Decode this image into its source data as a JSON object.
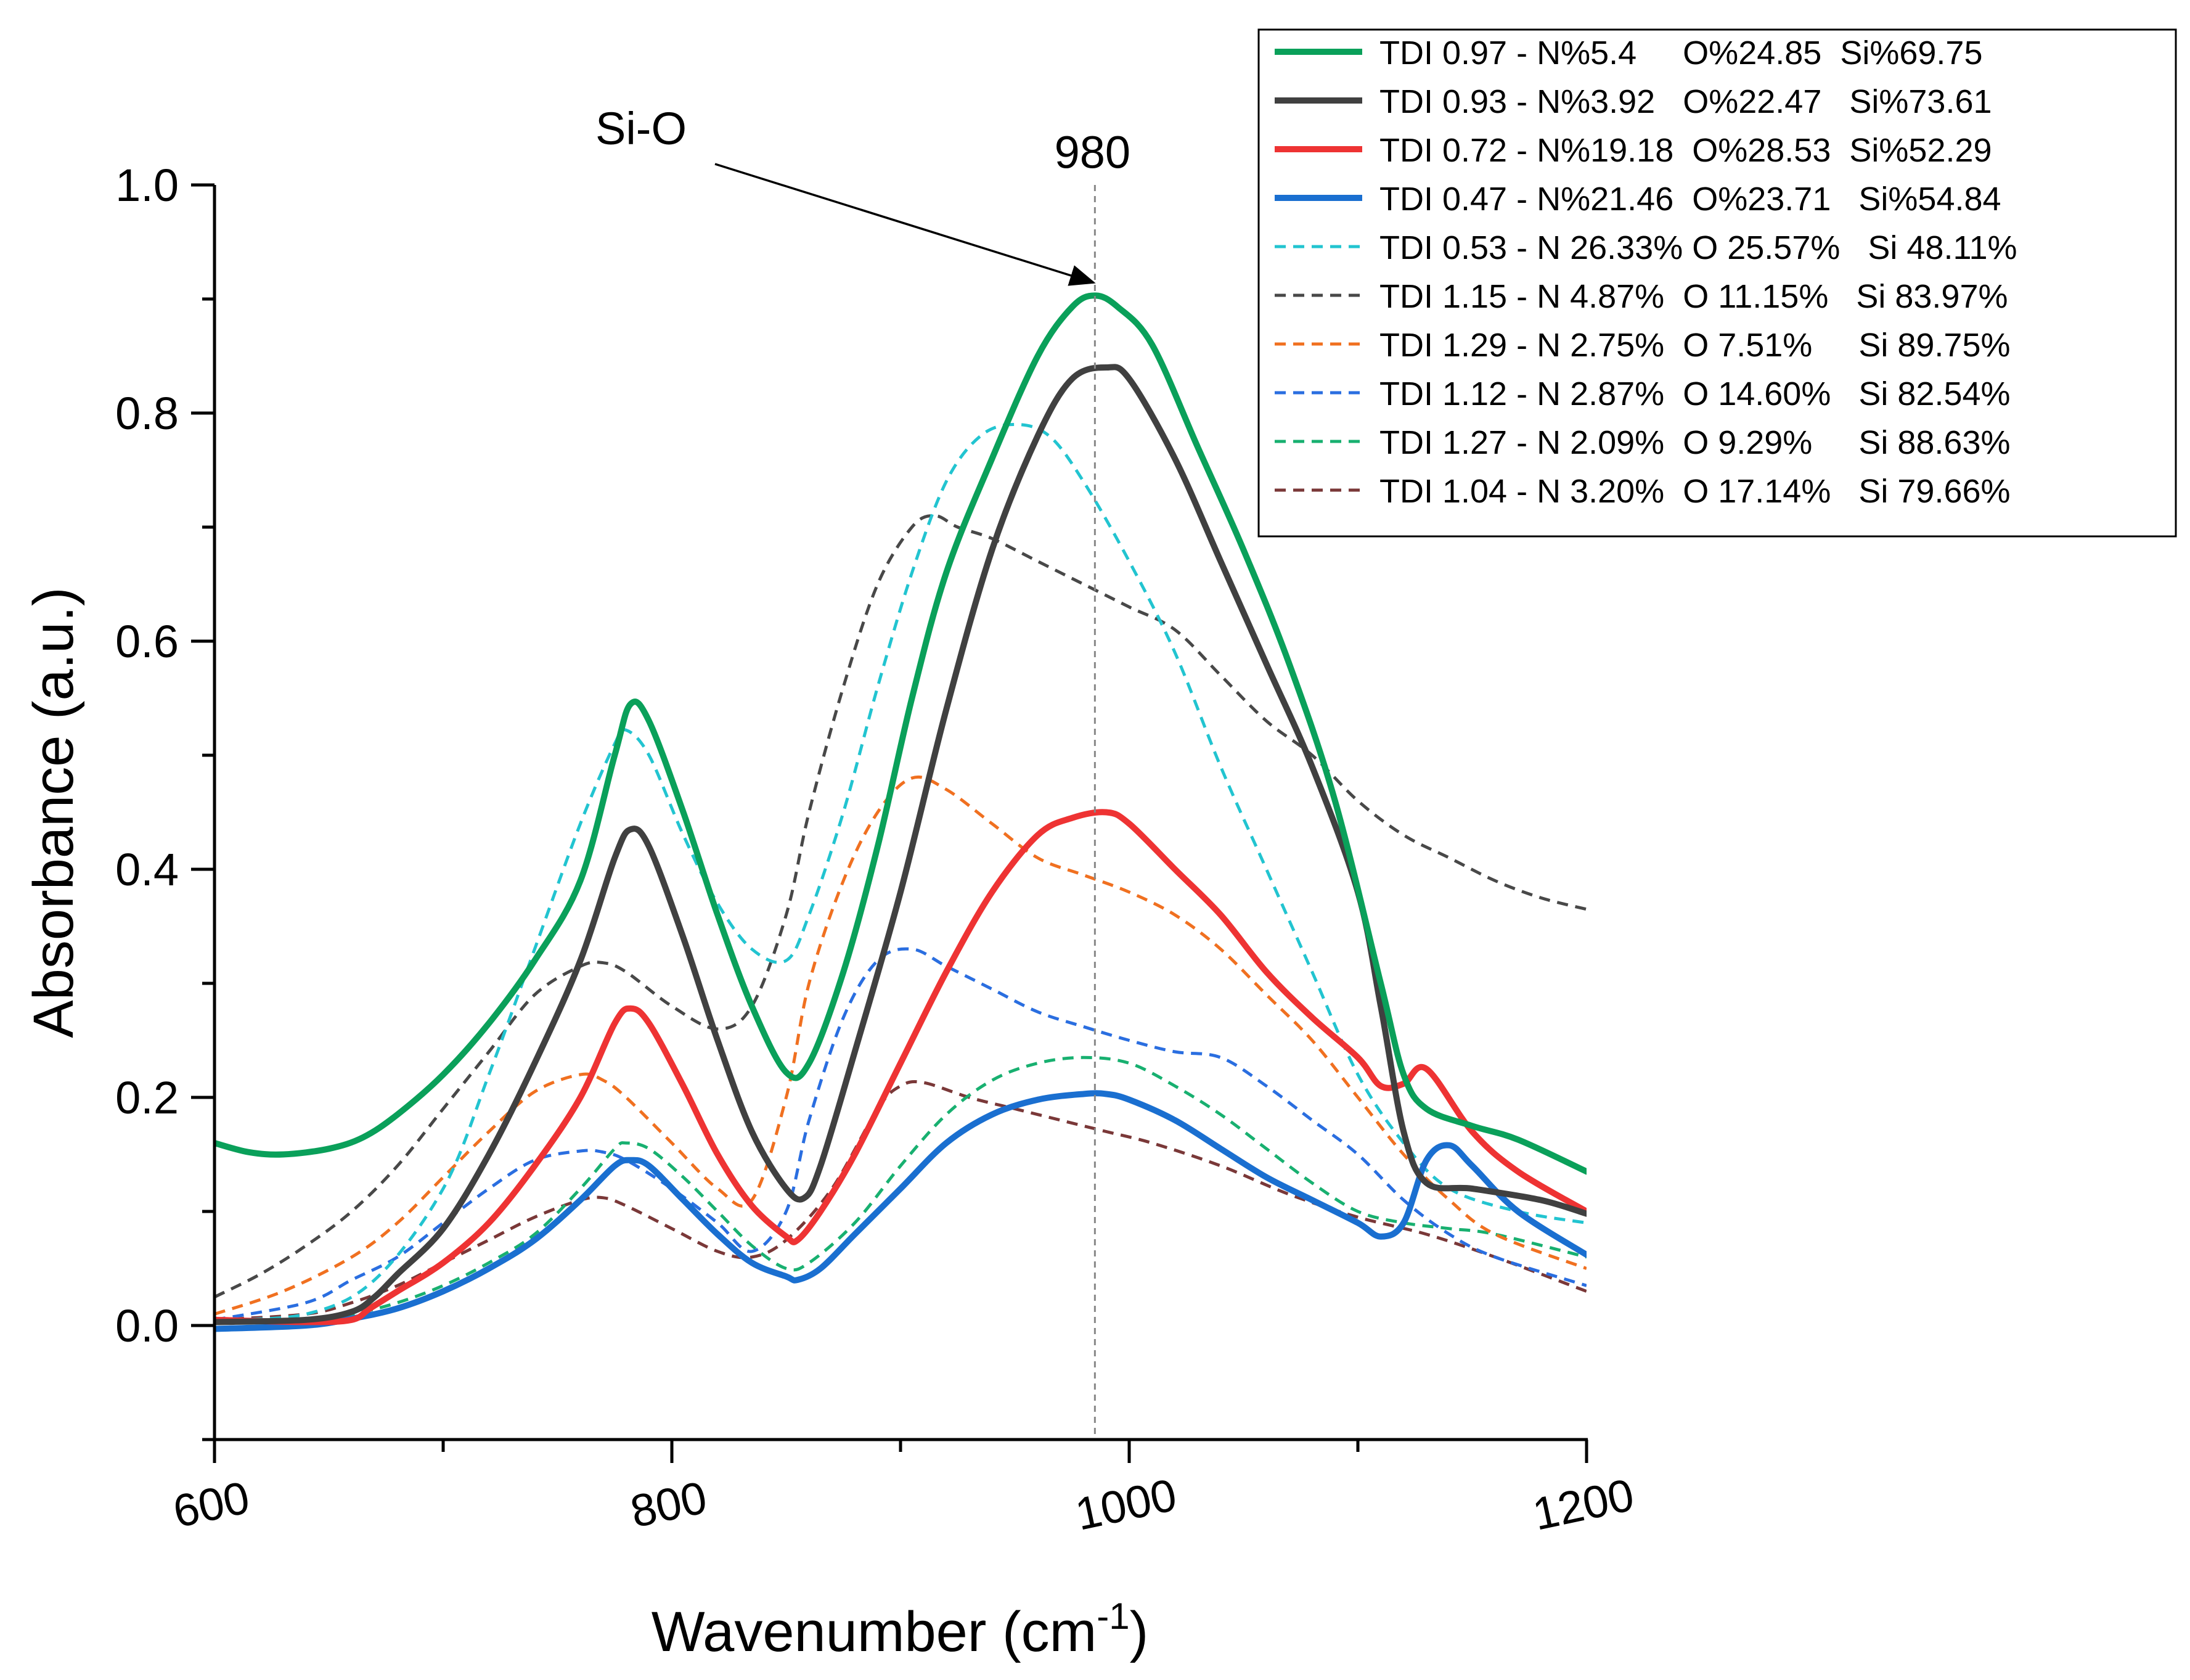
{
  "chart_data": {
    "type": "line",
    "xlabel": "Wavenumber (cm",
    "xlabel_sup": "-1",
    "xlabel_close": ")",
    "ylabel": "Absorbance (a.u.)",
    "xlim": [
      600,
      1200
    ],
    "ylim": [
      -0.1,
      1.0
    ],
    "x_ticks": [
      600,
      800,
      1000,
      1200
    ],
    "y_ticks": [
      0.0,
      0.2,
      0.4,
      0.6,
      0.8,
      1.0
    ],
    "y_tick_labels": [
      "0.0",
      "0.2",
      "0.4",
      "0.6",
      "0.8",
      "1.0"
    ],
    "grid": false,
    "legend_position": "top-right",
    "annotations": [
      {
        "text": "Si-O",
        "x": 800,
        "y": 1.04,
        "arrow_to_x": 985,
        "arrow_to_y": 0.91
      },
      {
        "text": "980",
        "x": 985,
        "y": 1.03,
        "vline_x": 985
      }
    ],
    "series": [
      {
        "name": "TDI 0.97 - N%5.4     O%24.85  Si%69.75",
        "color": "#0aa05a",
        "style": "solid",
        "x": [
          600,
          615,
          630,
          650,
          665,
          680,
          700,
          720,
          740,
          760,
          775,
          782,
          790,
          805,
          820,
          835,
          850,
          860,
          875,
          890,
          905,
          920,
          940,
          960,
          975,
          985,
          995,
          1010,
          1030,
          1050,
          1070,
          1090,
          1110,
          1120,
          1130,
          1150,
          1170,
          1200
        ],
        "y": [
          0.16,
          0.152,
          0.15,
          0.155,
          0.165,
          0.185,
          0.22,
          0.265,
          0.32,
          0.39,
          0.5,
          0.545,
          0.53,
          0.45,
          0.36,
          0.28,
          0.222,
          0.23,
          0.31,
          0.42,
          0.55,
          0.66,
          0.76,
          0.85,
          0.893,
          0.903,
          0.893,
          0.86,
          0.77,
          0.68,
          0.58,
          0.46,
          0.3,
          0.22,
          0.19,
          0.175,
          0.163,
          0.135
        ]
      },
      {
        "name": "TDI 0.93 - N%3.92   O%22.47   Si%73.61",
        "color": "#404040",
        "style": "solid",
        "x": [
          600,
          640,
          660,
          670,
          680,
          700,
          720,
          740,
          760,
          775,
          782,
          790,
          805,
          820,
          835,
          850,
          858,
          865,
          880,
          900,
          920,
          940,
          960,
          975,
          990,
          1000,
          1020,
          1040,
          1060,
          1080,
          1100,
          1110,
          1120,
          1130,
          1150,
          1180,
          1200
        ],
        "y": [
          0.003,
          0.005,
          0.012,
          0.025,
          0.045,
          0.085,
          0.15,
          0.23,
          0.32,
          0.41,
          0.435,
          0.42,
          0.34,
          0.25,
          0.17,
          0.12,
          0.112,
          0.14,
          0.24,
          0.38,
          0.54,
          0.68,
          0.78,
          0.83,
          0.84,
          0.83,
          0.76,
          0.67,
          0.58,
          0.49,
          0.38,
          0.28,
          0.17,
          0.125,
          0.12,
          0.11,
          0.098
        ]
      },
      {
        "name": "TDI 0.72 - N%19.18  O%28.53  Si%52.29",
        "color": "#ee3333",
        "style": "solid",
        "x": [
          600,
          640,
          660,
          668,
          680,
          700,
          720,
          740,
          760,
          775,
          782,
          790,
          805,
          820,
          835,
          850,
          855,
          865,
          880,
          900,
          920,
          940,
          960,
          975,
          990,
          1000,
          1020,
          1040,
          1060,
          1080,
          1100,
          1110,
          1120,
          1130,
          1150,
          1170,
          1200
        ],
        "y": [
          0.005,
          0.003,
          0.005,
          0.015,
          0.03,
          0.055,
          0.09,
          0.14,
          0.2,
          0.265,
          0.278,
          0.265,
          0.21,
          0.15,
          0.105,
          0.078,
          0.075,
          0.1,
          0.15,
          0.23,
          0.31,
          0.38,
          0.43,
          0.445,
          0.45,
          0.44,
          0.4,
          0.36,
          0.31,
          0.27,
          0.235,
          0.21,
          0.212,
          0.225,
          0.17,
          0.135,
          0.1
        ]
      },
      {
        "name": "TDI 0.47 - N%21.46  O%23.71   Si%54.84",
        "color": "#1a6fd0",
        "style": "solid",
        "x": [
          600,
          640,
          660,
          680,
          700,
          720,
          740,
          760,
          775,
          782,
          790,
          805,
          820,
          835,
          850,
          855,
          865,
          880,
          900,
          920,
          940,
          960,
          980,
          990,
          1000,
          1020,
          1040,
          1060,
          1080,
          1100,
          1110,
          1120,
          1130,
          1140,
          1150,
          1170,
          1200
        ],
        "y": [
          -0.003,
          0.0,
          0.006,
          0.015,
          0.03,
          0.05,
          0.075,
          0.11,
          0.14,
          0.145,
          0.14,
          0.11,
          0.08,
          0.055,
          0.043,
          0.04,
          0.05,
          0.08,
          0.12,
          0.16,
          0.185,
          0.198,
          0.203,
          0.203,
          0.198,
          0.18,
          0.155,
          0.13,
          0.11,
          0.09,
          0.078,
          0.09,
          0.145,
          0.158,
          0.14,
          0.1,
          0.062
        ]
      },
      {
        "name": "TDI 0.53 - N 26.33% O 25.57%   Si 48.11%",
        "color": "#22c4d0",
        "style": "dashed",
        "x": [
          600,
          640,
          670,
          700,
          720,
          740,
          760,
          775,
          780,
          790,
          805,
          820,
          835,
          850,
          860,
          875,
          890,
          905,
          920,
          935,
          950,
          965,
          980,
          1000,
          1020,
          1040,
          1060,
          1080,
          1100,
          1120,
          1140,
          1170,
          1200
        ],
        "y": [
          0.005,
          0.01,
          0.04,
          0.12,
          0.22,
          0.33,
          0.44,
          0.51,
          0.522,
          0.5,
          0.43,
          0.37,
          0.33,
          0.32,
          0.36,
          0.45,
          0.56,
          0.66,
          0.74,
          0.78,
          0.79,
          0.78,
          0.74,
          0.67,
          0.59,
          0.49,
          0.4,
          0.31,
          0.22,
          0.16,
          0.12,
          0.1,
          0.09
        ]
      },
      {
        "name": "TDI 1.15 - N 4.87%  O 11.15%   Si 83.97%",
        "color": "#484848",
        "style": "dashed",
        "x": [
          600,
          620,
          640,
          660,
          680,
          700,
          720,
          740,
          760,
          770,
          780,
          800,
          820,
          835,
          850,
          860,
          875,
          890,
          905,
          915,
          925,
          940,
          960,
          980,
          1000,
          1020,
          1040,
          1060,
          1080,
          1100,
          1120,
          1140,
          1160,
          1180,
          1200
        ],
        "y": [
          0.025,
          0.045,
          0.07,
          0.1,
          0.14,
          0.19,
          0.24,
          0.29,
          0.315,
          0.318,
          0.31,
          0.28,
          0.26,
          0.28,
          0.36,
          0.45,
          0.56,
          0.65,
          0.7,
          0.71,
          0.7,
          0.69,
          0.67,
          0.65,
          0.63,
          0.61,
          0.57,
          0.53,
          0.5,
          0.46,
          0.43,
          0.41,
          0.39,
          0.375,
          0.365
        ]
      },
      {
        "name": "TDI 1.29 - N 2.75%  O 7.51%     Si 89.75%",
        "color": "#f07020",
        "style": "dashed",
        "x": [
          600,
          630,
          660,
          680,
          700,
          720,
          740,
          760,
          770,
          780,
          800,
          820,
          835,
          850,
          860,
          875,
          890,
          905,
          920,
          940,
          960,
          980,
          1000,
          1020,
          1040,
          1060,
          1080,
          1100,
          1120,
          1140,
          1160,
          1200
        ],
        "y": [
          0.01,
          0.03,
          0.06,
          0.09,
          0.13,
          0.17,
          0.205,
          0.22,
          0.215,
          0.2,
          0.16,
          0.12,
          0.11,
          0.2,
          0.3,
          0.39,
          0.45,
          0.48,
          0.47,
          0.44,
          0.41,
          0.395,
          0.38,
          0.36,
          0.33,
          0.29,
          0.25,
          0.2,
          0.15,
          0.11,
          0.08,
          0.05
        ]
      },
      {
        "name": "TDI 1.12 - N 2.87%  O 14.60%   Si 82.54%",
        "color": "#2a6ee0",
        "style": "dashed",
        "x": [
          600,
          640,
          660,
          680,
          700,
          720,
          740,
          760,
          770,
          780,
          800,
          820,
          835,
          850,
          860,
          875,
          890,
          905,
          920,
          940,
          960,
          980,
          1000,
          1020,
          1040,
          1060,
          1080,
          1100,
          1120,
          1140,
          1160,
          1200
        ],
        "y": [
          0.005,
          0.02,
          0.04,
          0.06,
          0.09,
          0.12,
          0.145,
          0.153,
          0.152,
          0.145,
          0.12,
          0.09,
          0.065,
          0.1,
          0.18,
          0.27,
          0.32,
          0.33,
          0.315,
          0.295,
          0.275,
          0.262,
          0.25,
          0.24,
          0.235,
          0.21,
          0.18,
          0.15,
          0.11,
          0.08,
          0.06,
          0.035
        ]
      },
      {
        "name": "TDI 1.27 - N 2.09%  O 9.29%     Si 88.63%",
        "color": "#18b070",
        "style": "dashed",
        "x": [
          600,
          640,
          660,
          680,
          700,
          720,
          740,
          760,
          775,
          780,
          790,
          805,
          820,
          835,
          850,
          860,
          880,
          900,
          920,
          940,
          960,
          980,
          1000,
          1020,
          1040,
          1060,
          1080,
          1100,
          1120,
          1140,
          1160,
          1200
        ],
        "y": [
          0.005,
          0.005,
          0.01,
          0.02,
          0.035,
          0.055,
          0.08,
          0.12,
          0.155,
          0.16,
          0.155,
          0.13,
          0.1,
          0.07,
          0.05,
          0.055,
          0.09,
          0.14,
          0.185,
          0.215,
          0.23,
          0.235,
          0.23,
          0.21,
          0.185,
          0.155,
          0.125,
          0.1,
          0.09,
          0.085,
          0.08,
          0.06
        ]
      },
      {
        "name": "TDI 1.04 - N 3.20%  O 17.14%   Si 79.66%",
        "color": "#7a3838",
        "style": "dashed",
        "x": [
          600,
          640,
          660,
          680,
          700,
          720,
          740,
          760,
          770,
          780,
          800,
          820,
          835,
          850,
          870,
          890,
          900,
          910,
          930,
          950,
          970,
          990,
          1010,
          1040,
          1070,
          1100,
          1130,
          1160,
          1200
        ],
        "y": [
          0.005,
          0.01,
          0.02,
          0.035,
          0.055,
          0.075,
          0.095,
          0.11,
          0.112,
          0.105,
          0.085,
          0.065,
          0.06,
          0.075,
          0.12,
          0.19,
          0.21,
          0.213,
          0.2,
          0.19,
          0.18,
          0.17,
          0.16,
          0.14,
          0.115,
          0.095,
          0.08,
          0.06,
          0.03
        ]
      }
    ]
  }
}
